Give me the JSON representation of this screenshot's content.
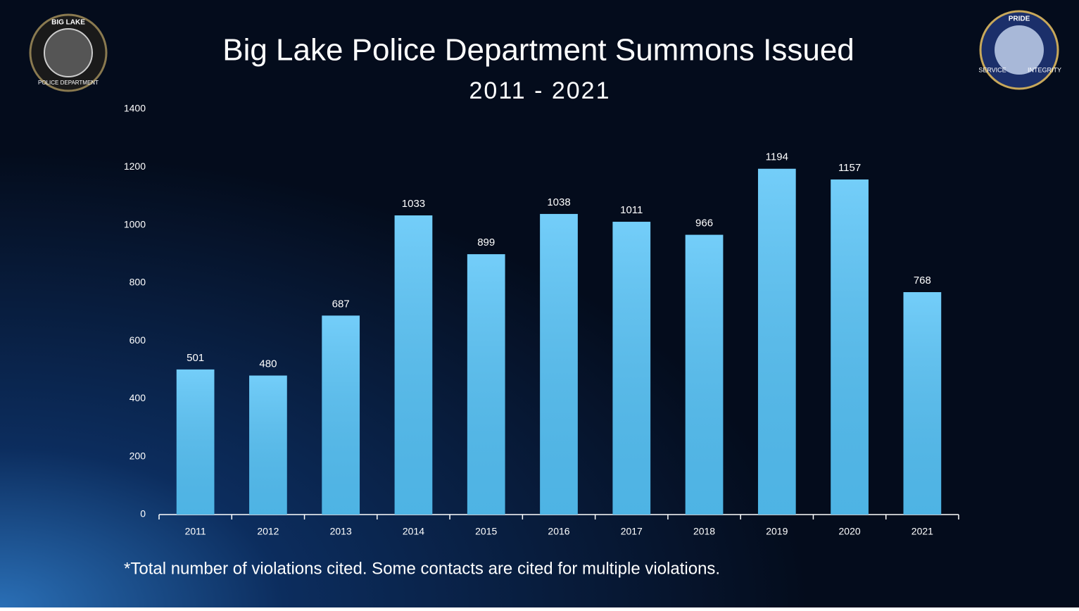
{
  "chart_data": {
    "type": "bar",
    "title": "Big Lake Police Department Summons Issued",
    "subtitle": "2011 - 2021",
    "footnote": "*Total number of violations cited.  Some contacts are cited for multiple violations.",
    "categories": [
      "2011",
      "2012",
      "2013",
      "2014",
      "2015",
      "2016",
      "2017",
      "2018",
      "2019",
      "2020",
      "2021"
    ],
    "values": [
      501,
      480,
      687,
      1033,
      899,
      1038,
      1011,
      966,
      1194,
      1157,
      768
    ],
    "color": "#55c3f8",
    "ylim": [
      0,
      1400
    ],
    "yticks": [
      0,
      200,
      400,
      600,
      800,
      1000,
      1200,
      1400
    ],
    "grid": false
  },
  "logos": {
    "left": [
      "BIG LAKE",
      "POLICE DEPARTMENT"
    ],
    "right": [
      "PRIDE",
      "SERVICE",
      "INTEGRITY"
    ]
  }
}
